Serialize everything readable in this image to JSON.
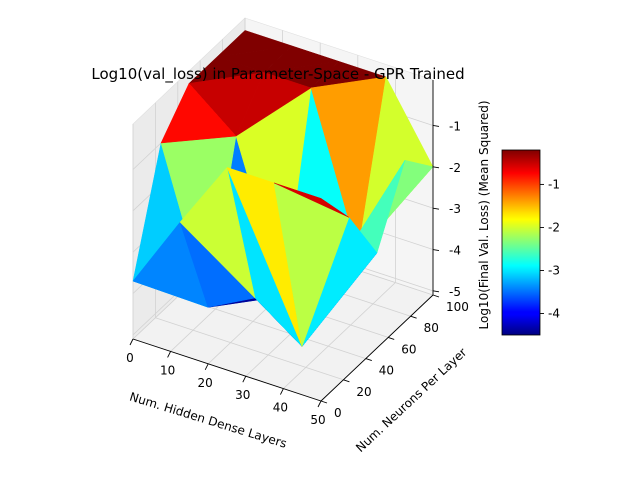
{
  "chart_data": {
    "type": "surface3d",
    "title": "Log10(val_loss) in Parameter-Space - GPR Trained",
    "xlabel": "Num. Hidden Dense Layers",
    "ylabel": "Num. Neurons Per Layer",
    "zlabel": "Log10(Final Val. Loss)  (Mean Squared)",
    "x_ticks": [
      "0",
      "10",
      "20",
      "30",
      "40",
      "50"
    ],
    "y_ticks": [
      "0",
      "20",
      "40",
      "60",
      "80",
      "100"
    ],
    "z_ticks": [
      "-5",
      "-4",
      "-3",
      "-2",
      "-1"
    ],
    "xlim": [
      0,
      50
    ],
    "ylim": [
      0,
      100
    ],
    "zlim": [
      -5.1,
      0.1
    ],
    "grid": true,
    "colormap": "jet",
    "colorbar": {
      "label": "Log10(Final Val. Loss)  (Mean Squared)",
      "range": [
        -4.5,
        -0.2
      ],
      "ticks": [
        "-4",
        "-3",
        "-2",
        "-1"
      ],
      "placement": "right"
    },
    "grid_x": [
      0,
      12.5,
      25,
      37.5,
      50
    ],
    "grid_y": [
      0,
      25,
      50,
      75,
      100
    ],
    "surface_z": [
      [
        -3.7,
        -1.0,
        -0.2,
        -0.2,
        -0.2
      ],
      [
        -1.9,
        -4.6,
        -1.1,
        -0.2,
        -0.2
      ],
      [
        -0.2,
        -4.0,
        -4.6,
        -0.2,
        -0.2
      ],
      [
        -0.2,
        -4.8,
        -3.8,
        -3.8,
        -0.2
      ],
      [
        -0.2,
        -1.3,
        -2.8,
        -1.2,
        -2.0
      ]
    ]
  }
}
